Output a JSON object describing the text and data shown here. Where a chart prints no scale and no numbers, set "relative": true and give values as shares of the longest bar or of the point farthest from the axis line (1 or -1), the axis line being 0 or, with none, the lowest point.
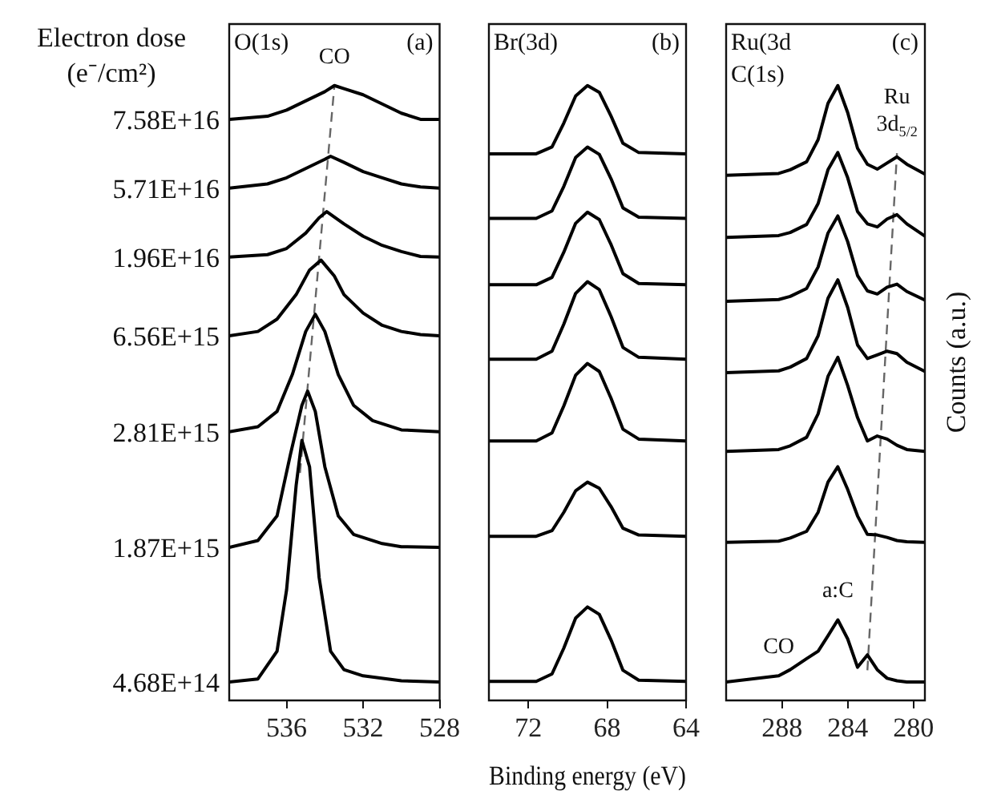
{
  "chart_data": [
    {
      "type": "line",
      "legend_title": "Electron dose (e⁻/cm²)",
      "annotations": [
        "O(1s)",
        "(a)",
        {
          "text": "CO",
          "x": 533.5,
          "y": 1.0
        }
      ],
      "xlim": [
        539,
        528
      ],
      "xticks": [
        536,
        532,
        528
      ],
      "relative": true,
      "marker": "none",
      "line_style": "solid",
      "series": [
        {
          "name": "7.58E+16",
          "color": "#000000",
          "x": [
            539,
            537,
            536,
            535,
            534,
            533.5,
            533,
            532,
            531,
            530,
            529,
            528
          ],
          "values": [
            0.945,
            0.95,
            0.96,
            0.975,
            0.99,
            1.0,
            0.995,
            0.985,
            0.97,
            0.955,
            0.945,
            0.945
          ]
        },
        {
          "name": "5.71E+16",
          "color": "#000000",
          "x": [
            539,
            537,
            536,
            535,
            534,
            533.7,
            533,
            532,
            531,
            530,
            529,
            528
          ],
          "values": [
            0.833,
            0.84,
            0.85,
            0.865,
            0.88,
            0.885,
            0.875,
            0.86,
            0.85,
            0.84,
            0.835,
            0.833
          ]
        },
        {
          "name": "1.96E+16",
          "color": "#000000",
          "x": [
            539,
            537,
            536,
            535,
            534.3,
            533.9,
            533,
            532,
            531,
            530,
            529,
            528
          ],
          "values": [
            0.721,
            0.725,
            0.735,
            0.76,
            0.785,
            0.795,
            0.775,
            0.755,
            0.74,
            0.73,
            0.722,
            0.721
          ]
        },
        {
          "name": "6.56E+15",
          "color": "#000000",
          "x": [
            539,
            537.5,
            536.5,
            535.5,
            534.8,
            534.2,
            533.5,
            533,
            532,
            531,
            530,
            529,
            528
          ],
          "values": [
            0.593,
            0.6,
            0.62,
            0.66,
            0.7,
            0.716,
            0.69,
            0.66,
            0.63,
            0.61,
            0.6,
            0.595,
            0.593
          ]
        },
        {
          "name": "2.81E+15",
          "color": "#000000",
          "x": [
            539,
            537.5,
            536.5,
            535.7,
            535,
            534.5,
            534,
            533.3,
            532.5,
            531.5,
            530,
            528
          ],
          "values": [
            0.437,
            0.445,
            0.47,
            0.53,
            0.6,
            0.628,
            0.6,
            0.53,
            0.48,
            0.455,
            0.44,
            0.437
          ]
        },
        {
          "name": "1.87E+15",
          "color": "#000000",
          "x": [
            539,
            537.5,
            536.5,
            535.8,
            535.2,
            534.9,
            534.5,
            534,
            533.3,
            532.5,
            531,
            530,
            528
          ],
          "values": [
            0.249,
            0.26,
            0.3,
            0.4,
            0.48,
            0.503,
            0.47,
            0.38,
            0.3,
            0.27,
            0.255,
            0.25,
            0.249
          ]
        },
        {
          "name": "4.68E+14",
          "color": "#000000",
          "x": [
            539,
            537.5,
            536.5,
            536,
            535.5,
            535.2,
            534.8,
            534.3,
            533.7,
            533,
            532,
            530,
            528
          ],
          "values": [
            0.03,
            0.035,
            0.08,
            0.18,
            0.35,
            0.423,
            0.38,
            0.2,
            0.08,
            0.05,
            0.04,
            0.032,
            0.03
          ]
        },
        {
          "color": "#666666",
          "line_style": "dashed",
          "x": [
            535.3,
            533.5
          ],
          "values": [
            0.37,
            1.0
          ]
        }
      ]
    },
    {
      "type": "line",
      "xlabel": "Binding energy (eV)",
      "annotations": [
        "Br(3d)",
        "(b)"
      ],
      "xlim": [
        74,
        64
      ],
      "xticks": [
        72,
        68,
        64
      ],
      "relative": true,
      "marker": "none",
      "line_style": "solid",
      "x": [
        74,
        71.6,
        70.8,
        70.2,
        69.6,
        69.0,
        68.4,
        67.8,
        67.2,
        66.4,
        64
      ],
      "series": [
        {
          "color": "#000000",
          "values": [
            0.889,
            0.889,
            0.9,
            0.939,
            0.983,
            1.0,
            0.989,
            0.95,
            0.906,
            0.891,
            0.889
          ]
        },
        {
          "color": "#000000",
          "values": [
            0.784,
            0.784,
            0.796,
            0.836,
            0.883,
            0.9,
            0.888,
            0.848,
            0.801,
            0.786,
            0.784
          ]
        },
        {
          "color": "#000000",
          "values": [
            0.676,
            0.676,
            0.688,
            0.729,
            0.776,
            0.794,
            0.782,
            0.741,
            0.694,
            0.678,
            0.676
          ]
        },
        {
          "color": "#000000",
          "values": [
            0.555,
            0.555,
            0.568,
            0.612,
            0.662,
            0.681,
            0.668,
            0.624,
            0.574,
            0.558,
            0.555
          ]
        },
        {
          "color": "#000000",
          "values": [
            0.422,
            0.422,
            0.435,
            0.479,
            0.529,
            0.548,
            0.535,
            0.491,
            0.441,
            0.425,
            0.422
          ]
        },
        {
          "color": "#000000",
          "values": [
            0.267,
            0.267,
            0.276,
            0.306,
            0.341,
            0.355,
            0.345,
            0.315,
            0.28,
            0.269,
            0.267
          ]
        },
        {
          "color": "#000000",
          "values": [
            0.031,
            0.031,
            0.043,
            0.085,
            0.134,
            0.152,
            0.14,
            0.098,
            0.049,
            0.033,
            0.031
          ]
        }
      ]
    },
    {
      "type": "line",
      "ylabel": "Counts (a.u.)",
      "annotations": [
        "Ru(3d",
        "C(1s)",
        "(c)",
        {
          "text": "Ru 3d$_{5/2}$",
          "x": 281.0,
          "y": 0.89
        },
        {
          "text": "a:C",
          "x": 284.6,
          "y": 0.131
        },
        {
          "text": "CO",
          "x": 288.2,
          "y": 0.04
        }
      ],
      "xlim": [
        291.4,
        279.3
      ],
      "xticks": [
        288,
        284,
        280
      ],
      "relative": true,
      "marker": "none",
      "line_style": "solid",
      "x": [
        291.4,
        288.2,
        287.5,
        286.5,
        285.8,
        285.2,
        284.6,
        284.0,
        283.4,
        282.8,
        282.2,
        281.6,
        281.0,
        280.4,
        279.3
      ],
      "series": [
        {
          "color": "#000000",
          "values": [
            0.854,
            0.857,
            0.863,
            0.876,
            0.912,
            0.971,
            1.0,
            0.956,
            0.898,
            0.872,
            0.864,
            0.874,
            0.884,
            0.872,
            0.856
          ]
        },
        {
          "color": "#000000",
          "values": [
            0.753,
            0.756,
            0.761,
            0.774,
            0.808,
            0.863,
            0.891,
            0.85,
            0.795,
            0.775,
            0.77,
            0.783,
            0.79,
            0.775,
            0.755
          ]
        },
        {
          "color": "#000000",
          "values": [
            0.649,
            0.652,
            0.657,
            0.67,
            0.705,
            0.76,
            0.788,
            0.746,
            0.691,
            0.666,
            0.661,
            0.672,
            0.677,
            0.665,
            0.651
          ]
        },
        {
          "color": "#000000",
          "values": [
            0.533,
            0.536,
            0.542,
            0.556,
            0.593,
            0.654,
            0.684,
            0.639,
            0.578,
            0.556,
            0.562,
            0.568,
            0.564,
            0.55,
            0.535
          ]
        },
        {
          "color": "#000000",
          "values": [
            0.405,
            0.408,
            0.414,
            0.428,
            0.466,
            0.527,
            0.558,
            0.512,
            0.46,
            0.422,
            0.43,
            0.425,
            0.415,
            0.408,
            0.405
          ]
        },
        {
          "color": "#000000",
          "values": [
            0.257,
            0.259,
            0.264,
            0.275,
            0.306,
            0.355,
            0.38,
            0.343,
            0.3,
            0.27,
            0.269,
            0.265,
            0.26,
            0.258,
            0.257
          ]
        },
        {
          "color": "#000000",
          "values": [
            0.03,
            0.04,
            0.05,
            0.068,
            0.08,
            0.105,
            0.131,
            0.1,
            0.054,
            0.074,
            0.05,
            0.036,
            0.032,
            0.03,
            0.03
          ]
        },
        {
          "color": "#666666",
          "line_style": "dashed",
          "x": [
            282.8,
            281.0
          ],
          "values": [
            0.049,
            0.89
          ]
        }
      ]
    }
  ]
}
